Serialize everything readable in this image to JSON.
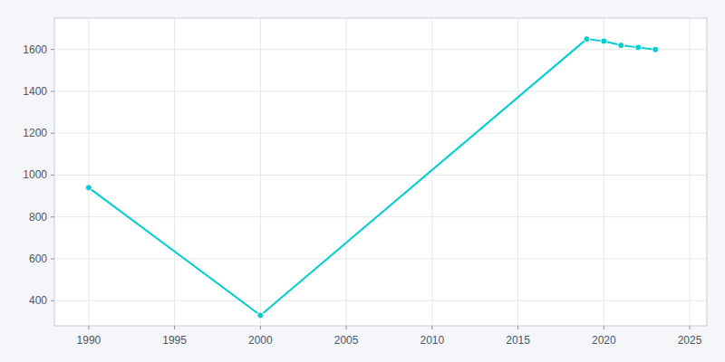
{
  "chart_data": {
    "type": "line",
    "x": [
      1990,
      2000,
      2019,
      2020,
      2021,
      2022,
      2023
    ],
    "values": [
      940,
      330,
      1650,
      1640,
      1620,
      1610,
      1600
    ],
    "color": "#00CED1",
    "marker": "circle",
    "xlim": [
      1988,
      2026
    ],
    "ylim": [
      280,
      1750
    ],
    "xticks": [
      1990,
      1995,
      2000,
      2005,
      2010,
      2015,
      2020,
      2025
    ],
    "yticks": [
      400,
      600,
      800,
      1000,
      1200,
      1400,
      1600
    ],
    "grid": true
  }
}
